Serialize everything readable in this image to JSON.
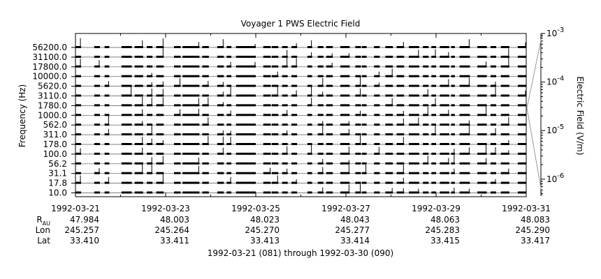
{
  "chart_data": {
    "type": "line",
    "title": "Voyager 1 PWS Electric Field",
    "ylabel": "Frequency (Hz)",
    "y2label": "Electric Field (V/m)",
    "xlabel": "1992-03-21 (081) through 1992-03-30 (090)",
    "y_scale": "log",
    "y2_scale": "log",
    "y2_range": [
      4.5e-07,
      0.001
    ],
    "channels": [
      "56200.0",
      "31100.0",
      "17800.0",
      "10000.0",
      "5620.0",
      "3110.0",
      "1780.0",
      "1000.0",
      "562.0",
      "311.0",
      "178.0",
      "100.0",
      "56.2",
      "31.1",
      "17.8",
      "10.0"
    ],
    "colorbar_ticks": [
      {
        "value": 0.001,
        "base": "10",
        "exp": "-3"
      },
      {
        "value": 0.0001,
        "base": "10",
        "exp": "-4"
      },
      {
        "value": 1e-05,
        "base": "10",
        "exp": "-5"
      },
      {
        "value": 1e-06,
        "base": "10",
        "exp": "-6"
      }
    ],
    "x_range": [
      "1992-03-21",
      "1992-03-31"
    ],
    "x_ticks": [
      "1992-03-21",
      "1992-03-23",
      "1992-03-25",
      "1992-03-27",
      "1992-03-29",
      "1992-03-31"
    ],
    "ephemeris": {
      "row_labels": [
        {
          "main": "R",
          "sub": "AU"
        },
        {
          "main": "Lon",
          "sub": ""
        },
        {
          "main": "Lat",
          "sub": ""
        }
      ],
      "R": [
        "47.984",
        "48.003",
        "48.023",
        "48.043",
        "48.063",
        "48.083"
      ],
      "Lon": [
        "245.257",
        "245.264",
        "245.270",
        "245.277",
        "245.283",
        "245.290"
      ],
      "Lat": [
        "33.410",
        "33.411",
        "33.413",
        "33.414",
        "33.415",
        "33.417"
      ]
    },
    "data_segments": [
      [
        "1992-03-21T00:00",
        "1992-03-21T03:00"
      ],
      [
        "1992-03-21T10:00",
        "1992-03-21T13:00"
      ],
      [
        "1992-03-21T15:30",
        "1992-03-21T18:00"
      ],
      [
        "1992-03-22T00:30",
        "1992-03-22T06:00"
      ],
      [
        "1992-03-22T07:30",
        "1992-03-22T12:00"
      ],
      [
        "1992-03-22T14:00",
        "1992-03-22T17:00"
      ],
      [
        "1992-03-22T19:00",
        "1992-03-22T23:00"
      ],
      [
        "1992-03-23T04:30",
        "1992-03-23T08:00"
      ],
      [
        "1992-03-23T09:00",
        "1992-03-23T18:00"
      ],
      [
        "1992-03-23T19:30",
        "1992-03-23T23:00"
      ],
      [
        "1992-03-24T03:30",
        "1992-03-24T07:00"
      ],
      [
        "1992-03-24T08:30",
        "1992-03-24T11:00"
      ],
      [
        "1992-03-24T13:30",
        "1992-03-25T00:00"
      ],
      [
        "1992-03-25T04:00",
        "1992-03-25T08:00"
      ],
      [
        "1992-03-25T08:30",
        "1992-03-25T12:00"
      ],
      [
        "1992-03-25T14:00",
        "1992-03-25T17:00"
      ],
      [
        "1992-03-25T19:00",
        "1992-03-25T22:00"
      ],
      [
        "1992-03-26T03:30",
        "1992-03-26T06:00"
      ],
      [
        "1992-03-26T09:00",
        "1992-03-26T12:00"
      ],
      [
        "1992-03-26T13:30",
        "1992-03-26T17:00"
      ],
      [
        "1992-03-26T21:00",
        "1992-03-27T02:00"
      ],
      [
        "1992-03-27T05:00",
        "1992-03-27T08:00"
      ],
      [
        "1992-03-27T08:30",
        "1992-03-27T11:00"
      ],
      [
        "1992-03-27T15:00",
        "1992-03-27T18:00"
      ],
      [
        "1992-03-27T21:00",
        "1992-03-28T01:00"
      ],
      [
        "1992-03-28T03:00",
        "1992-03-28T07:00"
      ],
      [
        "1992-03-28T09:30",
        "1992-03-28T15:00"
      ],
      [
        "1992-03-28T17:00",
        "1992-03-28T20:00"
      ],
      [
        "1992-03-28T21:30",
        "1992-03-29T00:00"
      ],
      [
        "1992-03-29T02:00",
        "1992-03-29T07:00"
      ],
      [
        "1992-03-29T08:00",
        "1992-03-29T10:00"
      ],
      [
        "1992-03-29T12:30",
        "1992-03-29T18:00"
      ],
      [
        "1992-03-29T22:00",
        "1992-03-30T03:00"
      ],
      [
        "1992-03-30T05:00",
        "1992-03-30T08:00"
      ],
      [
        "1992-03-30T10:30",
        "1992-03-30T15:00"
      ],
      [
        "1992-03-30T19:30",
        "1992-03-31T00:00"
      ]
    ]
  }
}
